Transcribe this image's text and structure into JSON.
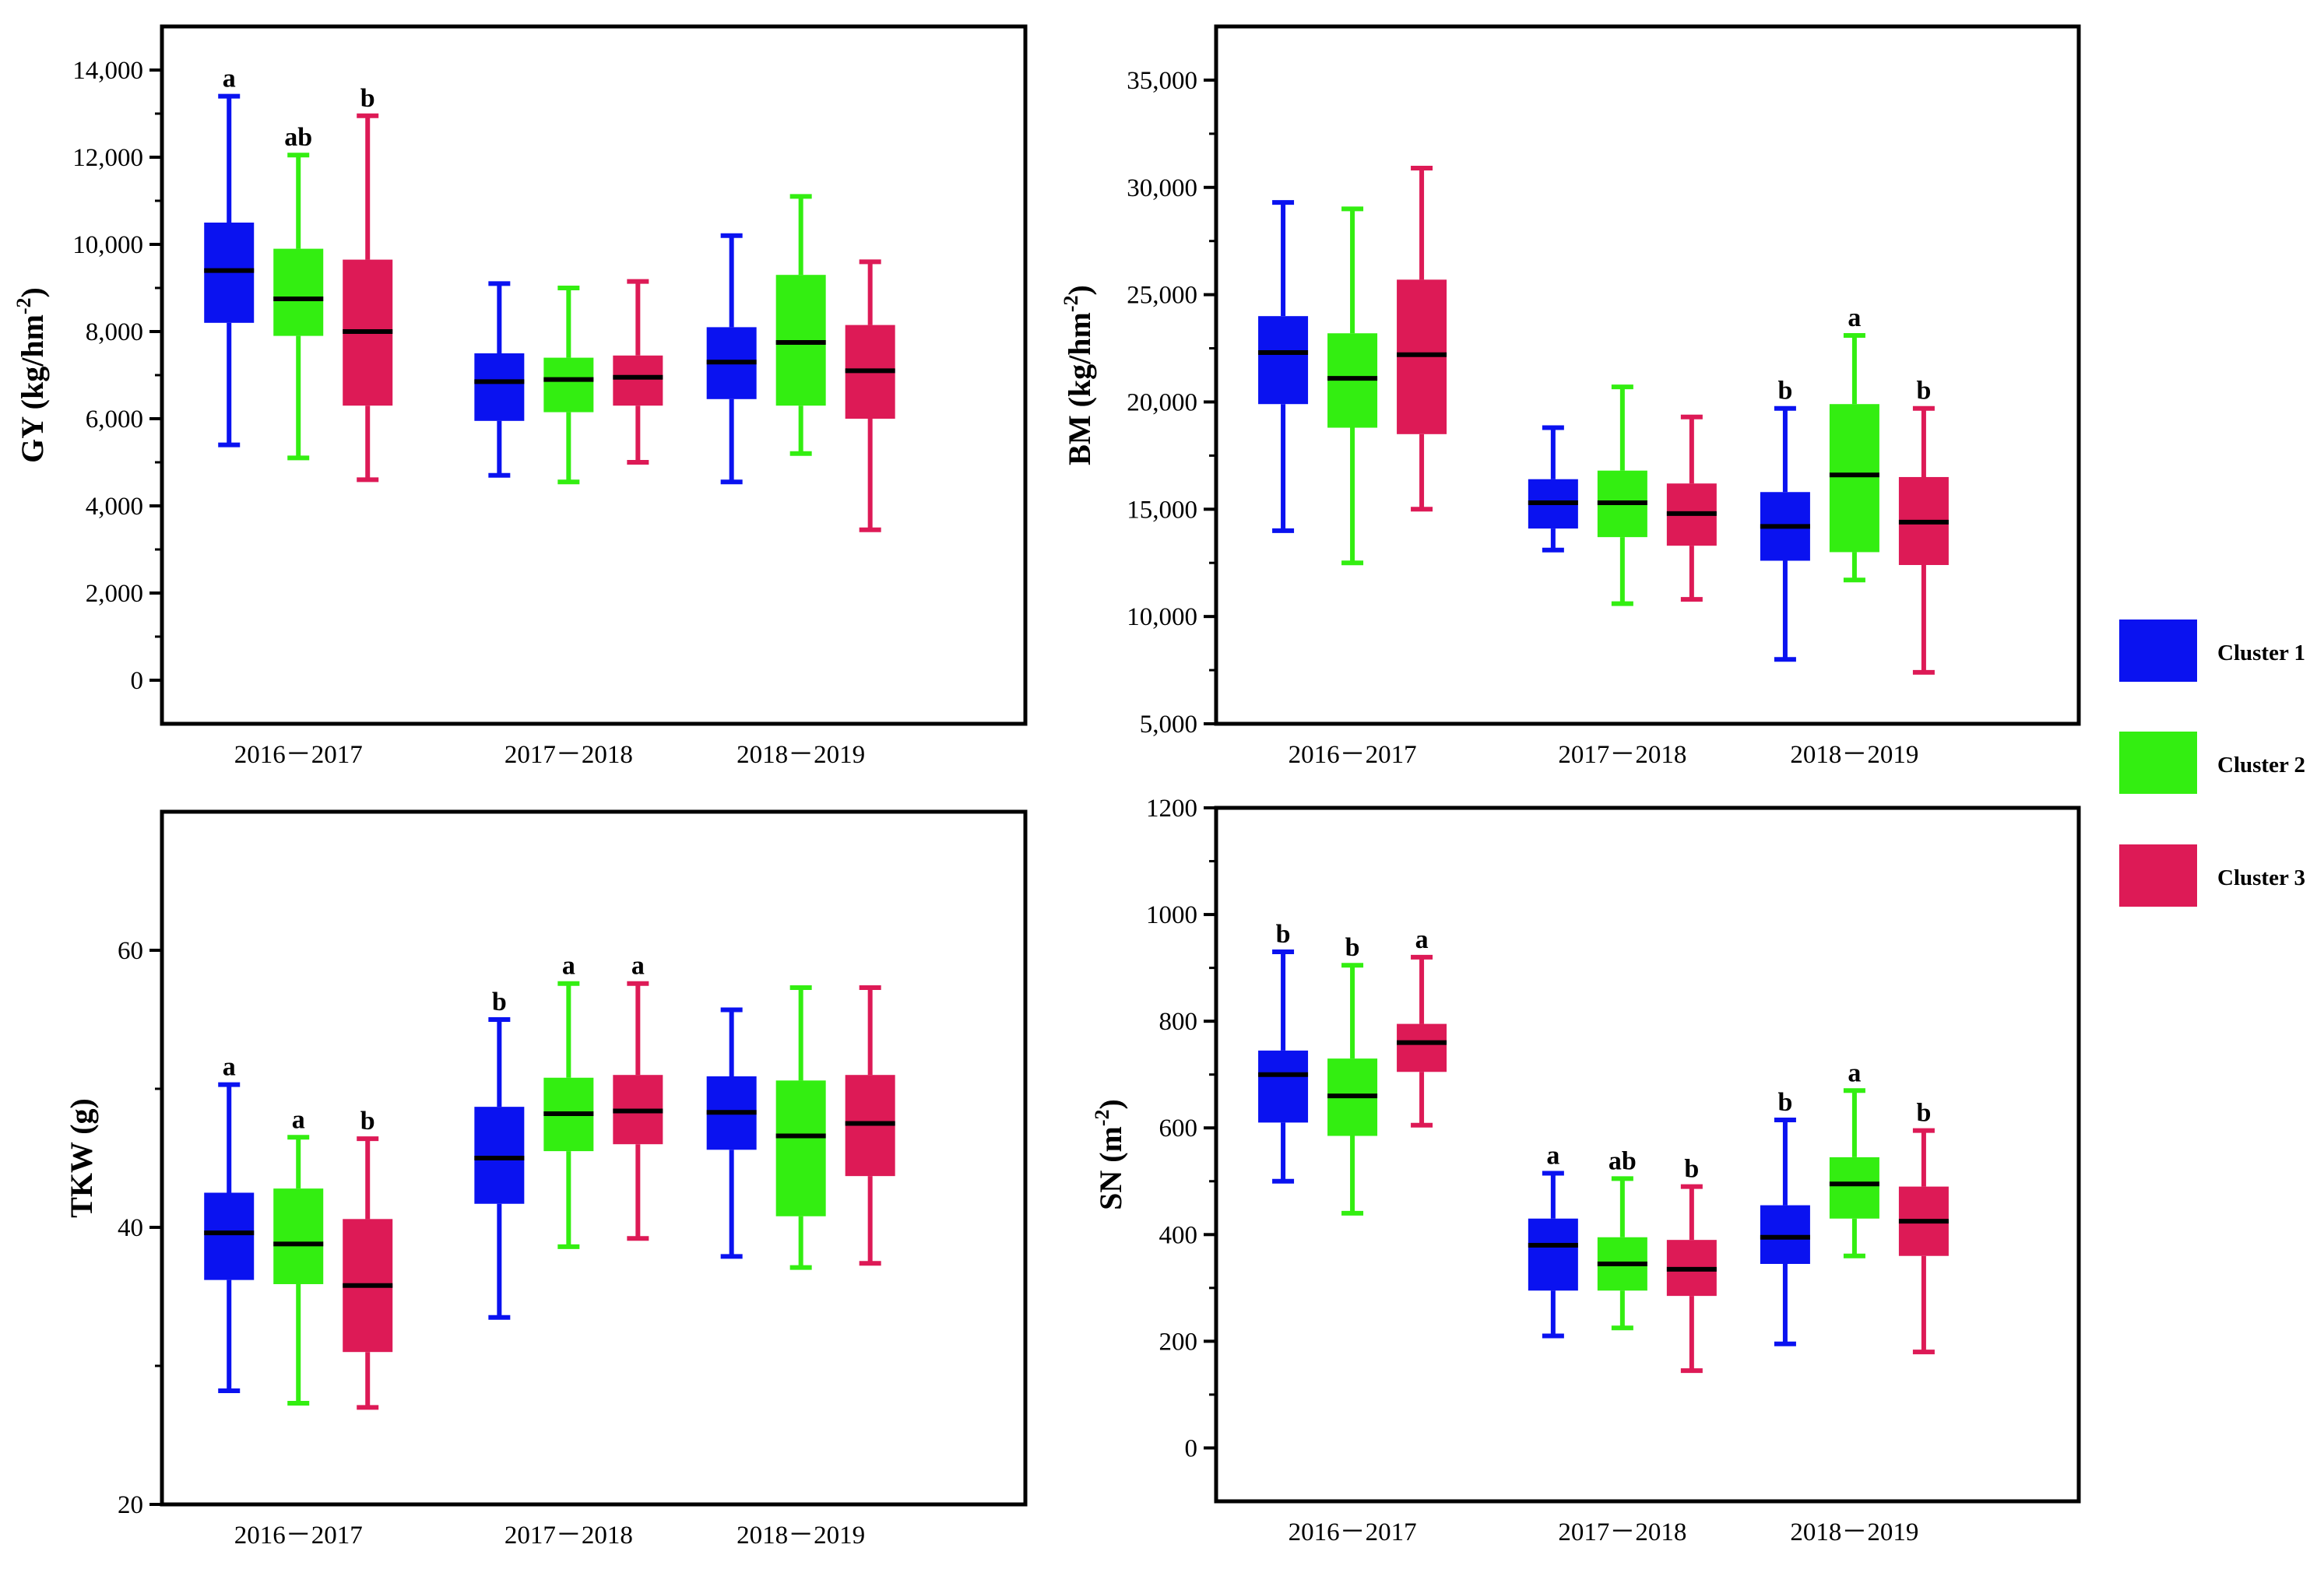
{
  "legend": {
    "items": [
      {
        "label": "Cluster 1",
        "color": "#0a12f0"
      },
      {
        "label": "Cluster 2",
        "color": "#33ee11"
      },
      {
        "label": "Cluster 3",
        "color": "#dd1a56"
      }
    ]
  },
  "chart_data": [
    {
      "type": "box",
      "ylabel": "GY (kg/hm",
      "ylabel_sup": "-2",
      "ylabel_tail": ")",
      "ylim": [
        -1000,
        15000
      ],
      "yticks": [
        0,
        2000,
        4000,
        6000,
        8000,
        10000,
        12000,
        14000
      ],
      "ytick_labels": [
        "0",
        "2,000",
        "4,000",
        "6,000",
        "8,000",
        "10,000",
        "12,000",
        "14,000"
      ],
      "categories": [
        "2016－2017",
        "2017－2018",
        "2018－2019"
      ],
      "groups": [
        {
          "category": "2016－2017",
          "boxes": [
            {
              "cluster": "Cluster 1",
              "min": 5400,
              "q1": 8200,
              "median": 9400,
              "q3": 10500,
              "max": 13400,
              "letter": "a"
            },
            {
              "cluster": "Cluster 2",
              "min": 5100,
              "q1": 7900,
              "median": 8750,
              "q3": 9900,
              "max": 12050,
              "letter": "ab"
            },
            {
              "cluster": "Cluster 3",
              "min": 4600,
              "q1": 6300,
              "median": 8000,
              "q3": 9650,
              "max": 12950,
              "letter": "b"
            }
          ]
        },
        {
          "category": "2017－2018",
          "boxes": [
            {
              "cluster": "Cluster 1",
              "min": 4700,
              "q1": 5950,
              "median": 6850,
              "q3": 7500,
              "max": 9100,
              "letter": ""
            },
            {
              "cluster": "Cluster 2",
              "min": 4550,
              "q1": 6150,
              "median": 6900,
              "q3": 7400,
              "max": 9000,
              "letter": ""
            },
            {
              "cluster": "Cluster 3",
              "min": 5000,
              "q1": 6300,
              "median": 6950,
              "q3": 7450,
              "max": 9150,
              "letter": ""
            }
          ]
        },
        {
          "category": "2018－2019",
          "boxes": [
            {
              "cluster": "Cluster 1",
              "min": 4550,
              "q1": 6450,
              "median": 7300,
              "q3": 8100,
              "max": 10200,
              "letter": ""
            },
            {
              "cluster": "Cluster 2",
              "min": 5200,
              "q1": 6300,
              "median": 7750,
              "q3": 9300,
              "max": 11100,
              "letter": ""
            },
            {
              "cluster": "Cluster 3",
              "min": 3450,
              "q1": 6000,
              "median": 7100,
              "q3": 8150,
              "max": 9600,
              "letter": ""
            }
          ]
        }
      ]
    },
    {
      "type": "box",
      "ylabel": "BM (kg/hm",
      "ylabel_sup": "-2",
      "ylabel_tail": ")",
      "ylim": [
        5000,
        37500
      ],
      "yticks": [
        5000,
        10000,
        15000,
        20000,
        25000,
        30000,
        35000
      ],
      "ytick_labels": [
        "5,000",
        "10,000",
        "15,000",
        "20,000",
        "25,000",
        "30,000",
        "35,000"
      ],
      "categories": [
        "2016－2017",
        "2017－2018",
        "2018－2019"
      ],
      "groups": [
        {
          "category": "2016－2017",
          "boxes": [
            {
              "cluster": "Cluster 1",
              "min": 14000,
              "q1": 19900,
              "median": 22300,
              "q3": 24000,
              "max": 29300,
              "letter": ""
            },
            {
              "cluster": "Cluster 2",
              "min": 12500,
              "q1": 18800,
              "median": 21100,
              "q3": 23200,
              "max": 29000,
              "letter": ""
            },
            {
              "cluster": "Cluster 3",
              "min": 15000,
              "q1": 18500,
              "median": 22200,
              "q3": 25700,
              "max": 30900,
              "letter": ""
            }
          ]
        },
        {
          "category": "2017－2018",
          "boxes": [
            {
              "cluster": "Cluster 1",
              "min": 13100,
              "q1": 14100,
              "median": 15300,
              "q3": 16400,
              "max": 18800,
              "letter": ""
            },
            {
              "cluster": "Cluster 2",
              "min": 10600,
              "q1": 13700,
              "median": 15300,
              "q3": 16800,
              "max": 20700,
              "letter": ""
            },
            {
              "cluster": "Cluster 3",
              "min": 10800,
              "q1": 13300,
              "median": 14800,
              "q3": 16200,
              "max": 19300,
              "letter": ""
            }
          ]
        },
        {
          "category": "2018－2019",
          "boxes": [
            {
              "cluster": "Cluster 1",
              "min": 8000,
              "q1": 12600,
              "median": 14200,
              "q3": 15800,
              "max": 19700,
              "letter": "b"
            },
            {
              "cluster": "Cluster 2",
              "min": 11700,
              "q1": 13000,
              "median": 16600,
              "q3": 19900,
              "max": 23100,
              "letter": "a"
            },
            {
              "cluster": "Cluster 3",
              "min": 7400,
              "q1": 12400,
              "median": 14400,
              "q3": 16500,
              "max": 19700,
              "letter": "b"
            }
          ]
        }
      ]
    },
    {
      "type": "box",
      "ylabel": "TKW (g)",
      "ylabel_sup": "",
      "ylabel_tail": "",
      "ylim": [
        20,
        70
      ],
      "yticks": [
        20,
        40,
        60
      ],
      "ytick_labels": [
        "20",
        "40",
        "60"
      ],
      "categories": [
        "2016－2017",
        "2017－2018",
        "2018－2019"
      ],
      "groups": [
        {
          "category": "2016－2017",
          "boxes": [
            {
              "cluster": "Cluster 1",
              "min": 28.2,
              "q1": 36.2,
              "median": 39.6,
              "q3": 42.5,
              "max": 50.3,
              "letter": "a"
            },
            {
              "cluster": "Cluster 2",
              "min": 27.3,
              "q1": 35.9,
              "median": 38.8,
              "q3": 42.8,
              "max": 46.5,
              "letter": "a"
            },
            {
              "cluster": "Cluster 3",
              "min": 27.0,
              "q1": 31.0,
              "median": 35.8,
              "q3": 40.6,
              "max": 46.4,
              "letter": "b"
            }
          ]
        },
        {
          "category": "2017－2018",
          "boxes": [
            {
              "cluster": "Cluster 1",
              "min": 33.5,
              "q1": 41.7,
              "median": 45.0,
              "q3": 48.7,
              "max": 55.0,
              "letter": "b"
            },
            {
              "cluster": "Cluster 2",
              "min": 38.6,
              "q1": 45.5,
              "median": 48.2,
              "q3": 50.8,
              "max": 57.6,
              "letter": "a"
            },
            {
              "cluster": "Cluster 3",
              "min": 39.2,
              "q1": 46.0,
              "median": 48.4,
              "q3": 51.0,
              "max": 57.6,
              "letter": "a"
            }
          ]
        },
        {
          "category": "2018－2019",
          "boxes": [
            {
              "cluster": "Cluster 1",
              "min": 37.9,
              "q1": 45.6,
              "median": 48.3,
              "q3": 50.9,
              "max": 55.7,
              "letter": ""
            },
            {
              "cluster": "Cluster 2",
              "min": 37.1,
              "q1": 40.8,
              "median": 46.6,
              "q3": 50.6,
              "max": 57.3,
              "letter": ""
            },
            {
              "cluster": "Cluster 3",
              "min": 37.4,
              "q1": 43.7,
              "median": 47.5,
              "q3": 51.0,
              "max": 57.3,
              "letter": ""
            }
          ]
        }
      ]
    },
    {
      "type": "box",
      "ylabel": "SN (m",
      "ylabel_sup": "-2",
      "ylabel_tail": ")",
      "ylim": [
        -100,
        1200
      ],
      "yticks": [
        0,
        200,
        400,
        600,
        800,
        1000,
        1200
      ],
      "ytick_labels": [
        "0",
        "200",
        "400",
        "600",
        "800",
        "1000",
        "1200"
      ],
      "categories": [
        "2016－2017",
        "2017－2018",
        "2018－2019"
      ],
      "groups": [
        {
          "category": "2016－2017",
          "boxes": [
            {
              "cluster": "Cluster 1",
              "min": 500,
              "q1": 610,
              "median": 700,
              "q3": 745,
              "max": 930,
              "letter": "b"
            },
            {
              "cluster": "Cluster 2",
              "min": 440,
              "q1": 585,
              "median": 660,
              "q3": 730,
              "max": 905,
              "letter": "b"
            },
            {
              "cluster": "Cluster 3",
              "min": 605,
              "q1": 705,
              "median": 760,
              "q3": 795,
              "max": 920,
              "letter": "a"
            }
          ]
        },
        {
          "category": "2017－2018",
          "boxes": [
            {
              "cluster": "Cluster 1",
              "min": 210,
              "q1": 295,
              "median": 380,
              "q3": 430,
              "max": 515,
              "letter": "a"
            },
            {
              "cluster": "Cluster 2",
              "min": 225,
              "q1": 295,
              "median": 345,
              "q3": 395,
              "max": 505,
              "letter": "ab"
            },
            {
              "cluster": "Cluster 3",
              "min": 145,
              "q1": 285,
              "median": 335,
              "q3": 390,
              "max": 490,
              "letter": "b"
            }
          ]
        },
        {
          "category": "2018－2019",
          "boxes": [
            {
              "cluster": "Cluster 1",
              "min": 195,
              "q1": 345,
              "median": 395,
              "q3": 455,
              "max": 615,
              "letter": "b"
            },
            {
              "cluster": "Cluster 2",
              "min": 360,
              "q1": 430,
              "median": 495,
              "q3": 545,
              "max": 670,
              "letter": "a"
            },
            {
              "cluster": "Cluster 3",
              "min": 180,
              "q1": 360,
              "median": 425,
              "q3": 490,
              "max": 595,
              "letter": "b"
            }
          ]
        }
      ]
    }
  ]
}
